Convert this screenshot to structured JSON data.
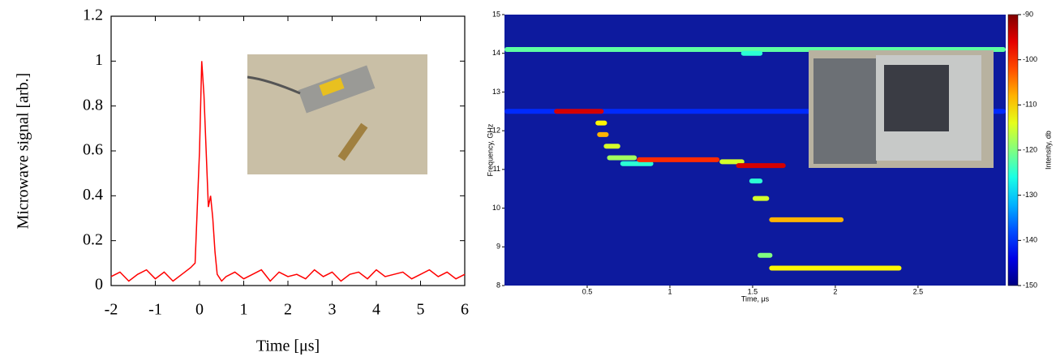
{
  "chart_data": [
    {
      "type": "line",
      "x_label": "Time [μs]",
      "y_label": "Microwave signal [arb.]",
      "x": [
        -2,
        -1.8,
        -1.6,
        -1.4,
        -1.2,
        -1,
        -0.8,
        -0.6,
        -0.4,
        -0.2,
        -0.1,
        0,
        0.05,
        0.1,
        0.15,
        0.2,
        0.25,
        0.3,
        0.35,
        0.4,
        0.5,
        0.6,
        0.8,
        1,
        1.2,
        1.4,
        1.6,
        1.8,
        2,
        2.2,
        2.4,
        2.6,
        2.8,
        3,
        3.2,
        3.4,
        3.6,
        3.8,
        4,
        4.2,
        4.4,
        4.6,
        4.8,
        5,
        5.2,
        5.4,
        5.6,
        5.8,
        6
      ],
      "series": [
        {
          "color": "#ff0000",
          "values": [
            0.04,
            0.06,
            0.02,
            0.05,
            0.07,
            0.03,
            0.06,
            0.02,
            0.05,
            0.08,
            0.1,
            0.6,
            1,
            0.85,
            0.6,
            0.35,
            0.4,
            0.3,
            0.15,
            0.05,
            0.02,
            0.04,
            0.06,
            0.03,
            0.05,
            0.07,
            0.02,
            0.06,
            0.04,
            0.05,
            0.03,
            0.07,
            0.04,
            0.06,
            0.02,
            0.05,
            0.06,
            0.03,
            0.07,
            0.04,
            0.05,
            0.06,
            0.03,
            0.05,
            0.07,
            0.04,
            0.06,
            0.03,
            0.05
          ]
        }
      ],
      "xlim": [
        -2,
        6
      ],
      "ylim": [
        0,
        1.2
      ],
      "xticks": [
        -2,
        -1,
        0,
        1,
        2,
        3,
        4,
        5,
        6
      ],
      "yticks": [
        0,
        0.2,
        0.4,
        0.6,
        0.8,
        1,
        1.2
      ]
    },
    {
      "type": "heatmap",
      "x_label": "Time, μs",
      "y_label": "Frequency, GHz",
      "colorbar_label": "Intensity, db",
      "xlim": [
        0,
        3.03
      ],
      "ylim": [
        8,
        15
      ],
      "xticks": [
        0.5,
        1,
        1.5,
        2,
        2.5
      ],
      "yticks": [
        8,
        9,
        10,
        11,
        12,
        13,
        14,
        15
      ],
      "clim": [
        -150,
        -90
      ],
      "cticks": [
        -150,
        -140,
        -130,
        -120,
        -110,
        -100,
        -90
      ],
      "segments": {
        "x0": [
          0,
          0,
          0.3,
          0.55,
          0.56,
          0.6,
          0.62,
          0.7,
          0.8,
          1.3,
          1.4,
          1.48,
          1.5,
          1.6,
          1.53,
          1.6,
          1.43
        ],
        "x1": [
          3.03,
          3.03,
          0.6,
          0.62,
          0.63,
          0.7,
          0.8,
          0.9,
          1.3,
          1.45,
          1.7,
          1.56,
          1.6,
          2.05,
          1.62,
          2.4,
          1.56
        ],
        "y": [
          14.1,
          12.5,
          12.5,
          12.2,
          11.9,
          11.6,
          11.3,
          11.15,
          11.25,
          11.2,
          11.1,
          10.7,
          10.25,
          9.7,
          8.78,
          8.45,
          14
        ],
        "values": [
          -122,
          -140,
          -95,
          -112,
          -108,
          -115,
          -118,
          -125,
          -100,
          -115,
          -95,
          -125,
          -115,
          -108,
          -120,
          -112,
          -125
        ]
      }
    }
  ]
}
